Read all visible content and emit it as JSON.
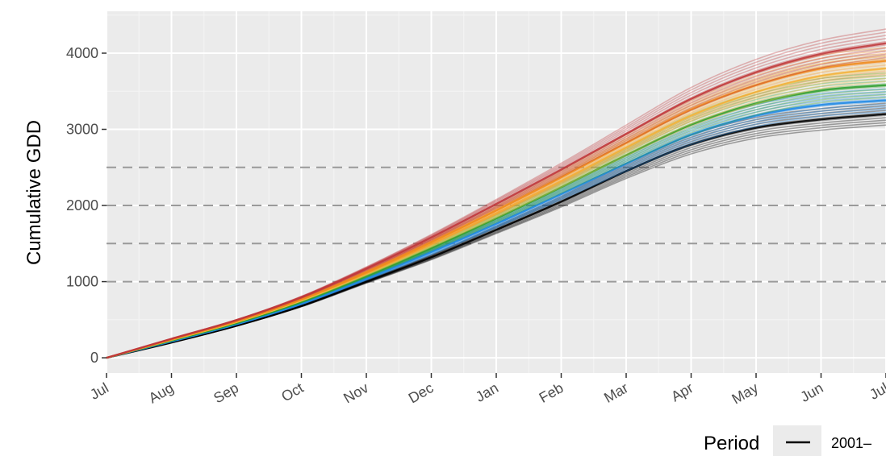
{
  "chart_data": {
    "type": "line",
    "title": "",
    "xlabel": "",
    "ylabel": "Cumulative GDD",
    "x_ticks": [
      "Jul",
      "Aug",
      "Sep",
      "Oct",
      "Nov",
      "Dec",
      "Jan",
      "Feb",
      "Mar",
      "Apr",
      "May",
      "Jun",
      "Jul"
    ],
    "y_ticks": [
      0,
      1000,
      2000,
      3000,
      4000
    ],
    "ylim": [
      -200,
      4550
    ],
    "reference_lines": [
      1000,
      1500,
      2000,
      2500
    ],
    "legend": {
      "title": "Period",
      "entries": [
        "2001–"
      ],
      "placement": "bottom-right"
    },
    "grid": true,
    "series_colors": [
      "#000000",
      "#1e88e5",
      "#2e9e2e",
      "#f5c24a",
      "#f08a1c",
      "#c0393b"
    ],
    "series": [
      {
        "color": "#000000",
        "end_values": [
          3150,
          3200,
          3250
        ],
        "values": [
          0,
          200,
          420,
          680,
          1000,
          1320,
          1680,
          2050,
          2450,
          2800,
          3020,
          3130,
          3200
        ]
      },
      {
        "color": "#1e88e5",
        "end_values": [
          3300,
          3380,
          3450
        ],
        "values": [
          0,
          215,
          440,
          710,
          1040,
          1390,
          1760,
          2150,
          2550,
          2930,
          3180,
          3320,
          3380
        ]
      },
      {
        "color": "#2e9e2e",
        "end_values": [
          3500,
          3580,
          3650
        ],
        "values": [
          0,
          225,
          455,
          735,
          1075,
          1440,
          1830,
          2240,
          2660,
          3060,
          3340,
          3510,
          3580
        ]
      },
      {
        "color": "#f5c24a",
        "end_values": [
          3700,
          3780,
          3850,
          3950
        ],
        "values": [
          0,
          235,
          470,
          755,
          1105,
          1490,
          1895,
          2320,
          2760,
          3180,
          3490,
          3700,
          3800
        ]
      },
      {
        "color": "#f08a1c",
        "end_values": [
          3850,
          3950
        ],
        "values": [
          0,
          240,
          478,
          768,
          1125,
          1520,
          1935,
          2370,
          2820,
          3260,
          3580,
          3800,
          3900
        ]
      },
      {
        "color": "#c0393b",
        "end_values": [
          3950,
          4050,
          4150,
          4250,
          4330
        ],
        "values": [
          0,
          250,
          495,
          795,
          1170,
          1580,
          2020,
          2470,
          2940,
          3400,
          3750,
          3990,
          4130
        ]
      }
    ]
  }
}
